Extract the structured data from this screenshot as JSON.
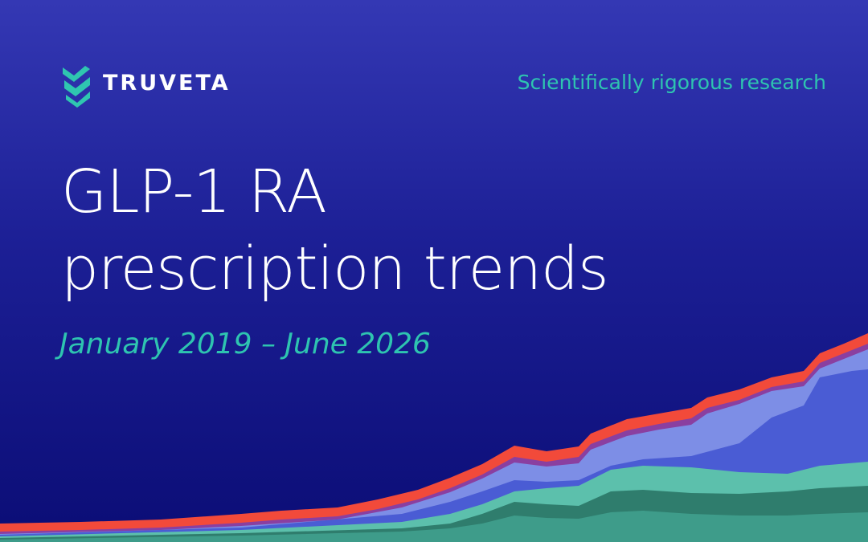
{
  "header": {
    "brand": "TRUVETA",
    "tagline": "Scientifically rigorous research"
  },
  "title": [
    "GLP-1 RA",
    "prescription trends"
  ],
  "subtitle": "January 2019 – June 2026"
}
